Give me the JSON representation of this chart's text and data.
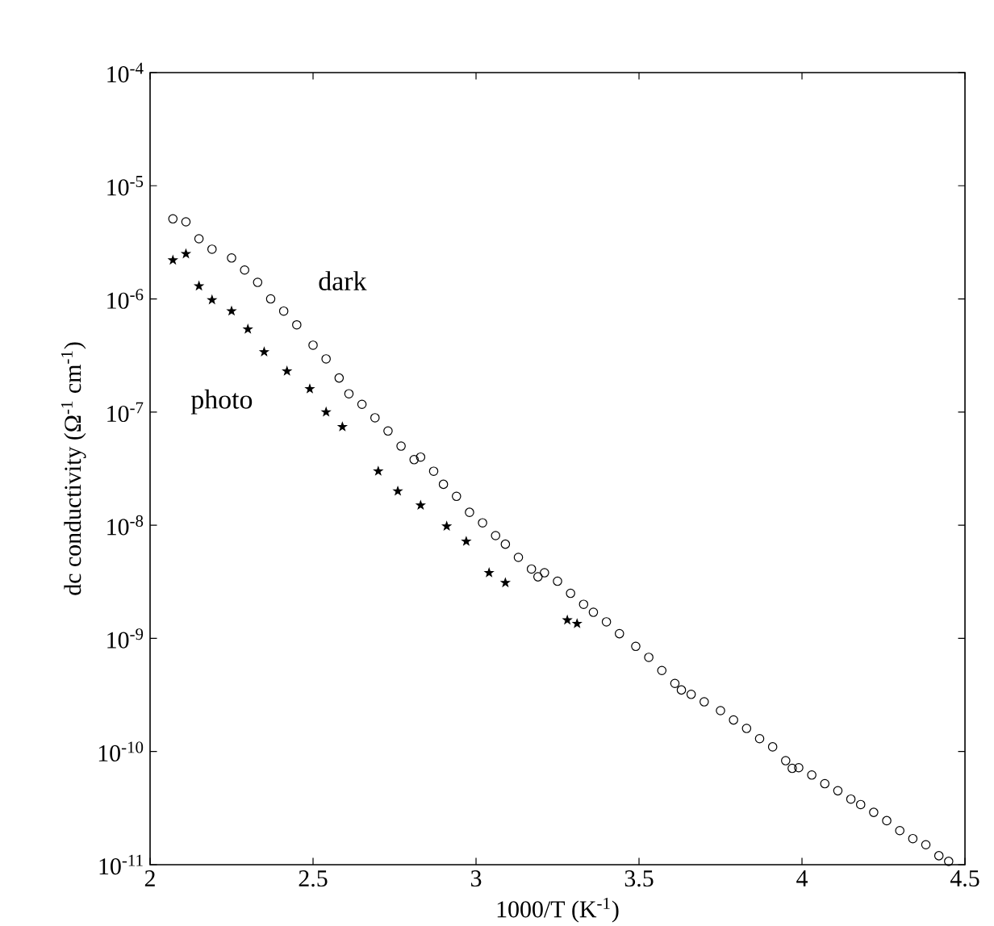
{
  "chart_data": {
    "type": "scatter",
    "xlabel": "1000/T  (K$^{-1}$)",
    "ylabel": "dc conductivity (Ω$^{-1}$ cm$^{-1}$)",
    "log": "y",
    "xlim": [
      2,
      4.5
    ],
    "xticks": [
      2,
      2.5,
      3,
      3.5,
      4,
      4.5
    ],
    "ylim": [
      1e-11,
      0.0001
    ],
    "yticks": [
      {
        "value": 1e-11,
        "label": "10$^{-11}$"
      },
      {
        "value": 1e-10,
        "label": "10$^{-10}$"
      },
      {
        "value": 1e-09,
        "label": "10$^{-9}$"
      },
      {
        "value": 1e-08,
        "label": "10$^{-8}$"
      },
      {
        "value": 1e-07,
        "label": "10$^{-7}$"
      },
      {
        "value": 1e-06,
        "label": "10$^{-6}$"
      },
      {
        "value": 1e-05,
        "label": "10$^{-5}$"
      },
      {
        "value": 0.0001,
        "label": "10$^{-4}$"
      }
    ],
    "series": [
      {
        "name": "dark",
        "color": "#000000",
        "marker": "circle",
        "x": [
          2.07,
          2.11,
          2.15,
          2.19,
          2.25,
          2.29,
          2.33,
          2.37,
          2.41,
          2.45,
          2.5,
          2.54,
          2.58,
          2.61,
          2.65,
          2.69,
          2.73,
          2.77,
          2.81,
          2.83,
          2.87,
          2.9,
          2.94,
          2.98,
          3.02,
          3.06,
          3.09,
          3.13,
          3.17,
          3.19,
          3.21,
          3.25,
          3.29,
          3.33,
          3.36,
          3.4,
          3.44,
          3.49,
          3.53,
          3.57,
          3.61,
          3.63,
          3.66,
          3.7,
          3.75,
          3.79,
          3.83,
          3.87,
          3.91,
          3.95,
          3.97,
          3.99,
          4.03,
          4.07,
          4.11,
          4.15,
          4.18,
          4.22,
          4.26,
          4.3,
          4.34,
          4.38,
          4.42,
          4.45
        ],
        "values": [
          5.1e-06,
          4.8e-06,
          3.4e-06,
          2.75e-06,
          2.3e-06,
          1.8e-06,
          1.4e-06,
          1e-06,
          7.8e-07,
          5.9e-07,
          3.9e-07,
          2.95e-07,
          2e-07,
          1.45e-07,
          1.17e-07,
          8.9e-08,
          6.8e-08,
          5e-08,
          3.8e-08,
          4e-08,
          3e-08,
          2.3e-08,
          1.8e-08,
          1.3e-08,
          1.05e-08,
          8.1e-09,
          6.8e-09,
          5.2e-09,
          4.1e-09,
          3.5e-09,
          3.8e-09,
          3.2e-09,
          2.5e-09,
          2e-09,
          1.7e-09,
          1.4e-09,
          1.1e-09,
          8.5e-10,
          6.8e-10,
          5.2e-10,
          4e-10,
          3.5e-10,
          3.2e-10,
          2.75e-10,
          2.3e-10,
          1.9e-10,
          1.6e-10,
          1.3e-10,
          1.1e-10,
          8.3e-11,
          7.1e-11,
          7.2e-11,
          6.2e-11,
          5.2e-11,
          4.5e-11,
          3.8e-11,
          3.4e-11,
          2.9e-11,
          2.45e-11,
          2e-11,
          1.7e-11,
          1.5e-11,
          1.2e-11,
          1.07e-11
        ]
      },
      {
        "name": "photo",
        "color": "#000000",
        "marker": "star",
        "x": [
          2.07,
          2.11,
          2.15,
          2.19,
          2.25,
          2.3,
          2.35,
          2.42,
          2.49,
          2.54,
          2.59,
          2.7,
          2.76,
          2.83,
          2.91,
          2.97,
          3.04,
          3.09,
          3.28,
          3.31
        ],
        "values": [
          2.2e-06,
          2.5e-06,
          1.3e-06,
          9.8e-07,
          7.8e-07,
          5.4e-07,
          3.4e-07,
          2.3e-07,
          1.6e-07,
          1e-07,
          7.4e-08,
          3e-08,
          2e-08,
          1.5e-08,
          9.8e-09,
          7.2e-09,
          3.8e-09,
          3.1e-09,
          1.45e-09,
          1.35e-09
        ]
      }
    ]
  }
}
